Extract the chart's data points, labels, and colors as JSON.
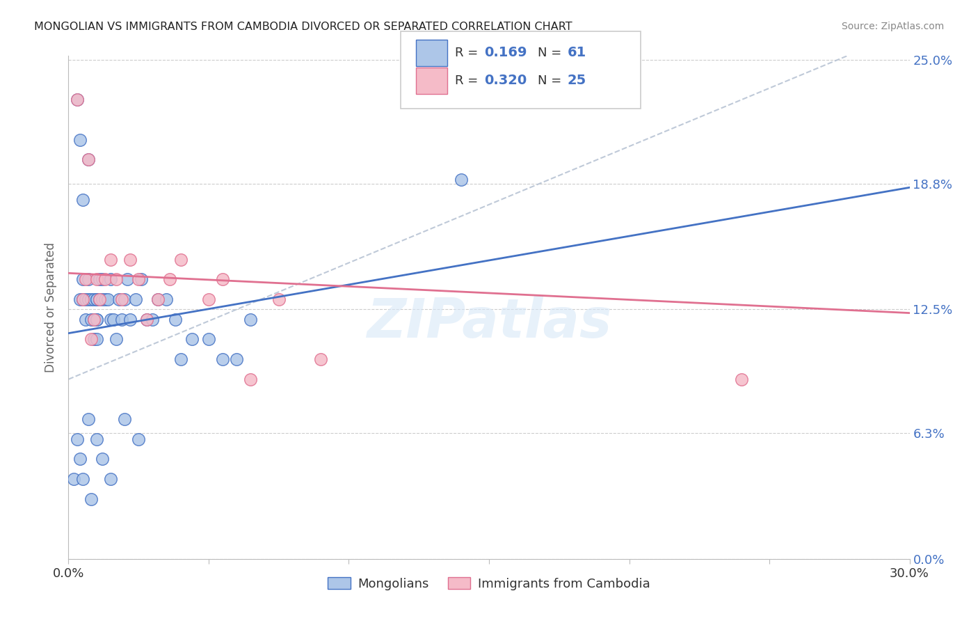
{
  "title": "MONGOLIAN VS IMMIGRANTS FROM CAMBODIA DIVORCED OR SEPARATED CORRELATION CHART",
  "source": "Source: ZipAtlas.com",
  "ylabel": "Divorced or Separated",
  "x_min": 0.0,
  "x_max": 0.3,
  "y_min": 0.0,
  "y_max": 0.25,
  "legend_r1": "0.169",
  "legend_n1": "61",
  "legend_r2": "0.320",
  "legend_n2": "25",
  "label1": "Mongolians",
  "label2": "Immigrants from Cambodia",
  "color1": "#adc6e8",
  "color2": "#f5bbc8",
  "line_color1": "#4472c4",
  "line_color2": "#e07090",
  "dashed_line_color": "#b8c4d4",
  "watermark": "ZIPatlas",
  "mongolian_x": [
    0.002,
    0.003,
    0.004,
    0.004,
    0.005,
    0.005,
    0.005,
    0.006,
    0.006,
    0.007,
    0.007,
    0.007,
    0.008,
    0.008,
    0.009,
    0.009,
    0.009,
    0.01,
    0.01,
    0.01,
    0.01,
    0.01,
    0.011,
    0.011,
    0.012,
    0.012,
    0.013,
    0.014,
    0.015,
    0.015,
    0.016,
    0.017,
    0.018,
    0.019,
    0.02,
    0.021,
    0.022,
    0.024,
    0.026,
    0.028,
    0.03,
    0.032,
    0.035,
    0.038,
    0.04,
    0.044,
    0.05,
    0.055,
    0.06,
    0.065,
    0.003,
    0.004,
    0.005,
    0.007,
    0.008,
    0.01,
    0.012,
    0.015,
    0.02,
    0.025,
    0.14
  ],
  "mongolian_y": [
    0.04,
    0.23,
    0.21,
    0.13,
    0.18,
    0.14,
    0.13,
    0.12,
    0.13,
    0.2,
    0.14,
    0.13,
    0.13,
    0.12,
    0.13,
    0.12,
    0.11,
    0.13,
    0.12,
    0.13,
    0.12,
    0.11,
    0.14,
    0.13,
    0.13,
    0.14,
    0.13,
    0.13,
    0.14,
    0.12,
    0.12,
    0.11,
    0.13,
    0.12,
    0.13,
    0.14,
    0.12,
    0.13,
    0.14,
    0.12,
    0.12,
    0.13,
    0.13,
    0.12,
    0.1,
    0.11,
    0.11,
    0.1,
    0.1,
    0.12,
    0.06,
    0.05,
    0.04,
    0.07,
    0.03,
    0.06,
    0.05,
    0.04,
    0.07,
    0.06,
    0.19
  ],
  "cambodia_x": [
    0.003,
    0.005,
    0.006,
    0.007,
    0.008,
    0.009,
    0.01,
    0.011,
    0.013,
    0.015,
    0.017,
    0.019,
    0.022,
    0.025,
    0.028,
    0.032,
    0.036,
    0.04,
    0.05,
    0.055,
    0.065,
    0.075,
    0.09,
    0.16,
    0.24
  ],
  "cambodia_y": [
    0.23,
    0.13,
    0.14,
    0.2,
    0.11,
    0.12,
    0.14,
    0.13,
    0.14,
    0.15,
    0.14,
    0.13,
    0.15,
    0.14,
    0.12,
    0.13,
    0.14,
    0.15,
    0.13,
    0.14,
    0.09,
    0.13,
    0.1,
    0.24,
    0.09
  ],
  "y_ticks": [
    0.0,
    0.063,
    0.125,
    0.188,
    0.25
  ],
  "y_tick_labels": [
    "0.0%",
    "6.3%",
    "12.5%",
    "18.8%",
    "25.0%"
  ],
  "x_ticks": [
    0.0,
    0.05,
    0.1,
    0.15,
    0.2,
    0.25,
    0.3
  ],
  "x_tick_labels": [
    "0.0%",
    "",
    "",
    "",
    "",
    "",
    "30.0%"
  ]
}
